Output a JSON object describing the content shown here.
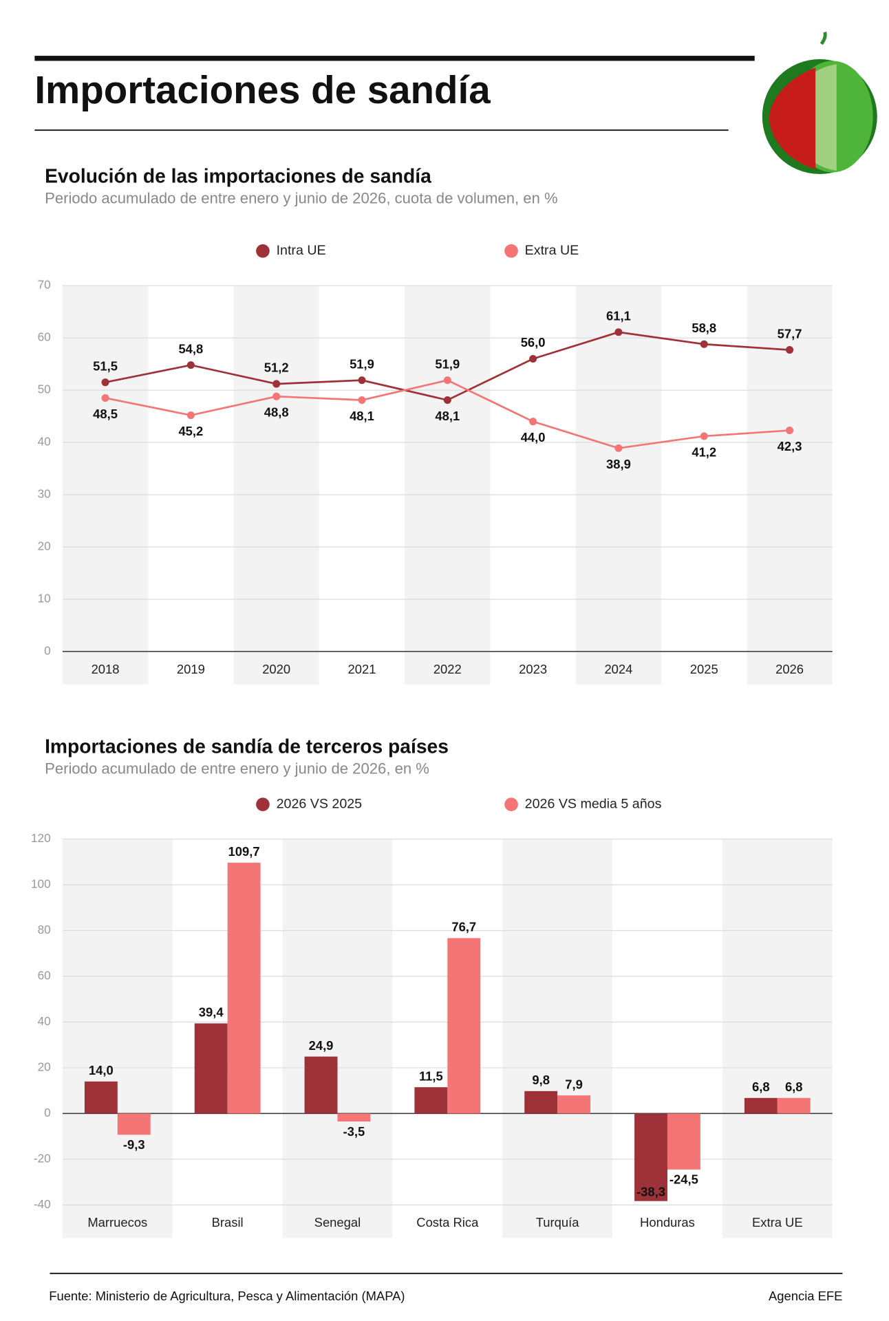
{
  "title": "Importaciones de sandía",
  "source": "Fuente: Ministerio de Agricultura, Pesca y Alimentación (MAPA)",
  "credit": "Agencia EFE",
  "chart_data": [
    {
      "type": "line",
      "title": "Evolución de las importaciones de sandía",
      "subtitle": "Periodo acumulado de entre enero y junio de 2026, cuota de volumen, en %",
      "categories": [
        "2018",
        "2019",
        "2020",
        "2021",
        "2022",
        "2023",
        "2024",
        "2025",
        "2026"
      ],
      "series": [
        {
          "name": "Intra UE",
          "color": "#9e3238",
          "values": [
            51.5,
            54.8,
            51.2,
            51.9,
            48.1,
            56.0,
            61.1,
            58.8,
            57.7
          ],
          "value_labels": [
            "51,5",
            "54,8",
            "51,2",
            "51,9",
            "48,1",
            "56,0",
            "61,1",
            "58,8",
            "57,7"
          ]
        },
        {
          "name": "Extra UE",
          "color": "#f47575",
          "values": [
            48.5,
            45.2,
            48.8,
            48.1,
            51.9,
            44.0,
            38.9,
            41.2,
            42.3
          ],
          "value_labels": [
            "48,5",
            "45,2",
            "48,8",
            "48,1",
            "51,9",
            "44,0",
            "38,9",
            "41,2",
            "42,3"
          ]
        }
      ],
      "ylim": [
        0,
        70
      ],
      "yticks": [
        0,
        10,
        20,
        30,
        40,
        50,
        60,
        70
      ],
      "grid": true
    },
    {
      "type": "bar",
      "title": "Importaciones de sandía de terceros países",
      "subtitle": "Periodo acumulado de entre enero y junio de 2026, en %",
      "categories": [
        "Marruecos",
        "Brasil",
        "Senegal",
        "Costa Rica",
        "Turquía",
        "Honduras",
        "Extra UE"
      ],
      "series": [
        {
          "name": "2026 VS 2025",
          "color": "#9e3238",
          "values": [
            14.0,
            39.4,
            24.9,
            11.5,
            9.8,
            -38.3,
            6.8
          ],
          "value_labels": [
            "14,0",
            "39,4",
            "24,9",
            "11,5",
            "9,8",
            "-38,3",
            "6,8"
          ]
        },
        {
          "name": "2026 VS media 5 años",
          "color": "#f47575",
          "values": [
            -9.3,
            109.7,
            -3.5,
            76.7,
            7.9,
            -24.5,
            6.8
          ],
          "value_labels": [
            "-9,3",
            "109,7",
            "-3,5",
            "76,7",
            "7,9",
            "-24,5",
            "6,8"
          ]
        }
      ],
      "ylim": [
        -40,
        120
      ],
      "yticks": [
        -40,
        -20,
        0,
        20,
        40,
        60,
        80,
        100,
        120
      ],
      "grid": true
    }
  ]
}
